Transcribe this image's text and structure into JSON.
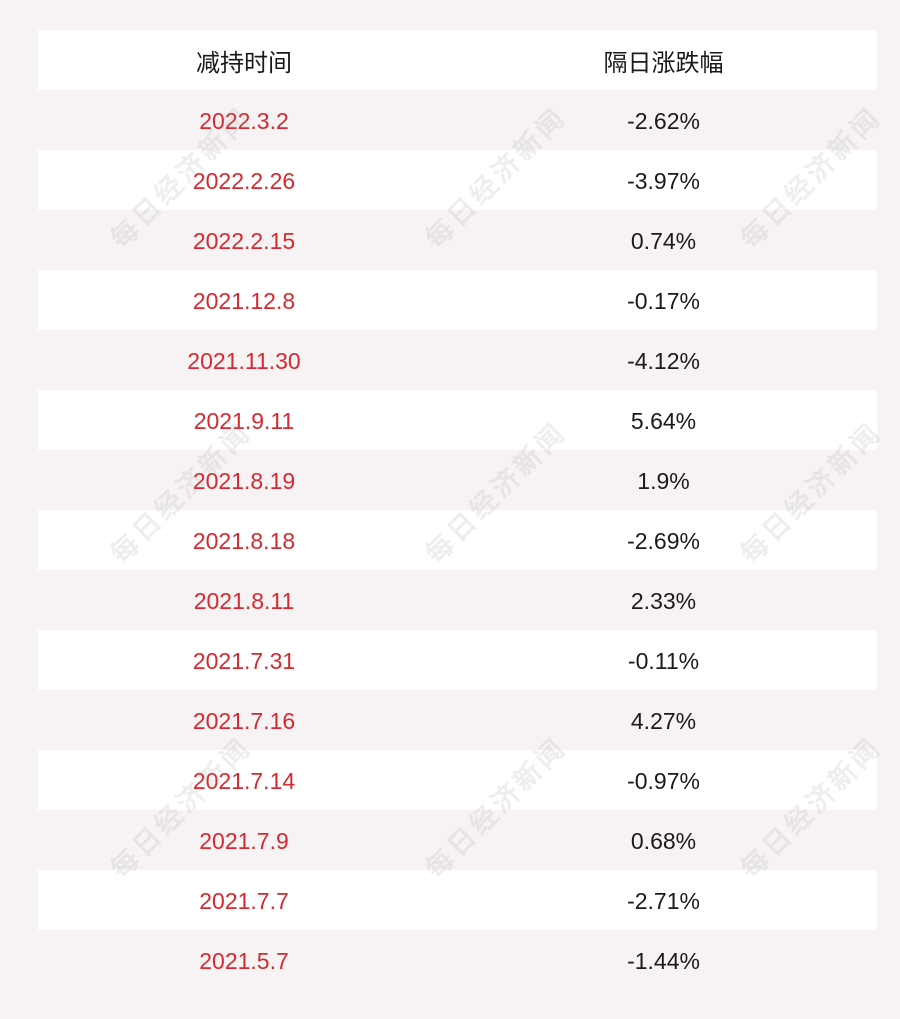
{
  "table": {
    "header": {
      "date_label": "减持时间",
      "change_label": "隔日涨跌幅"
    },
    "rows": [
      {
        "date": "2022.3.2",
        "change": "-2.62%"
      },
      {
        "date": "2022.2.26",
        "change": "-3.97%"
      },
      {
        "date": "2022.2.15",
        "change": "0.74%"
      },
      {
        "date": "2021.12.8",
        "change": "-0.17%"
      },
      {
        "date": "2021.11.30",
        "change": "-4.12%"
      },
      {
        "date": "2021.9.11",
        "change": "5.64%"
      },
      {
        "date": "2021.8.19",
        "change": "1.9%"
      },
      {
        "date": "2021.8.18",
        "change": "-2.69%"
      },
      {
        "date": "2021.8.11",
        "change": "2.33%"
      },
      {
        "date": "2021.7.31",
        "change": "-0.11%"
      },
      {
        "date": "2021.7.16",
        "change": "4.27%"
      },
      {
        "date": "2021.7.14",
        "change": "-0.97%"
      },
      {
        "date": "2021.7.9",
        "change": "0.68%"
      },
      {
        "date": "2021.7.7",
        "change": "-2.71%"
      },
      {
        "date": "2021.5.7",
        "change": "-1.44%"
      }
    ]
  },
  "watermark": {
    "text": "每日经济新闻"
  },
  "colors": {
    "date_text": "#d42a2f",
    "value_text": "#1a1a1a",
    "row_white": "#ffffff",
    "row_tinted": "#f7f3f4"
  }
}
